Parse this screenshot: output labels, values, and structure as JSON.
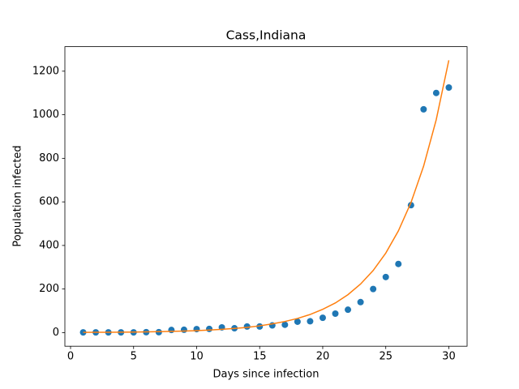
{
  "chart_data": {
    "type": "scatter",
    "title": "Cass,Indiana",
    "x_label": "Days since infection",
    "y_label": "Population infected",
    "x": [
      1,
      2,
      3,
      4,
      5,
      6,
      7,
      8,
      9,
      10,
      11,
      12,
      13,
      14,
      15,
      16,
      17,
      18,
      19,
      20,
      21,
      22,
      23,
      24,
      25,
      26,
      27,
      28,
      29,
      30
    ],
    "series": [
      {
        "type": "scatter",
        "color": "#1f77b4",
        "values": [
          1,
          1,
          1,
          1,
          1,
          2,
          2,
          12,
          13,
          16,
          17,
          24,
          20,
          28,
          28,
          33,
          36,
          50,
          52,
          68,
          87,
          105,
          140,
          200,
          255,
          315,
          585,
          1025,
          1100,
          1125
        ]
      },
      {
        "type": "line",
        "color": "#ff7f0e",
        "values": [
          1.0,
          1.3,
          1.6,
          2.1,
          2.6,
          3.4,
          4.3,
          5.5,
          7.1,
          9.1,
          11.6,
          15,
          19,
          24,
          31,
          40,
          51,
          65,
          83,
          107,
          136,
          174,
          223,
          285,
          365,
          467,
          597,
          764,
          977,
          1250
        ]
      }
    ],
    "xlim": [
      -0.45,
      31.45
    ],
    "ylim": [
      -62.5,
      1312.5
    ],
    "xticks": [
      0,
      5,
      10,
      15,
      20,
      25,
      30
    ],
    "yticks": [
      0,
      200,
      400,
      600,
      800,
      1000,
      1200
    ]
  }
}
